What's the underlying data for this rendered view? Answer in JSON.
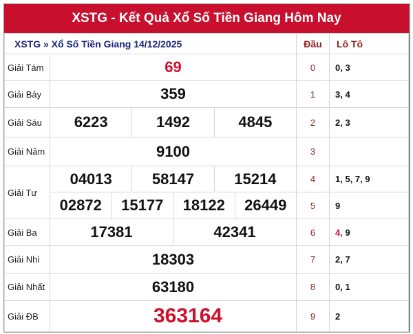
{
  "title": "XSTG - Kết Quả Xổ Số Tiền Giang Hôm Nay",
  "subheader": {
    "breadcrumb": "XSTG » Xổ Số Tiền Giang 14/12/2025",
    "dau_label": "Đầu",
    "loto_label": "Lô Tô"
  },
  "prizes": [
    {
      "label": "Giải Tám",
      "numbers": [
        "69"
      ]
    },
    {
      "label": "Giải Bảy",
      "numbers": [
        "359"
      ]
    },
    {
      "label": "Giải Sáu",
      "numbers": [
        "6223",
        "1492",
        "4845"
      ]
    },
    {
      "label": "Giải Năm",
      "numbers": [
        "9100"
      ]
    },
    {
      "label": "Giải Tư",
      "numbers": [
        "04013",
        "58147",
        "15214",
        "02872",
        "15177",
        "18122",
        "26449"
      ]
    },
    {
      "label": "Giải Ba",
      "numbers": [
        "17381",
        "42341"
      ]
    },
    {
      "label": "Giải Nhì",
      "numbers": [
        "18303"
      ]
    },
    {
      "label": "Giải Nhất",
      "numbers": [
        "63180"
      ]
    },
    {
      "label": "Giải ĐB",
      "numbers": [
        "363164"
      ]
    }
  ],
  "loto": [
    {
      "dau": "0",
      "tail": "0, 3"
    },
    {
      "dau": "1",
      "tail": "3, 4"
    },
    {
      "dau": "2",
      "tail": "2, 3"
    },
    {
      "dau": "3",
      "tail": ""
    },
    {
      "dau": "4",
      "tail": "1, 5, 7, 9"
    },
    {
      "dau": "5",
      "tail": "9"
    },
    {
      "dau": "6",
      "tail_highlight": "4,",
      "tail": " 9"
    },
    {
      "dau": "7",
      "tail": "2, 7"
    },
    {
      "dau": "8",
      "tail": "0, 1"
    },
    {
      "dau": "9",
      "tail": "2"
    }
  ],
  "colors": {
    "header": "#c8102e",
    "special": "#d0102b",
    "breadcrumb": "#1a237e",
    "dau": "#8b2a2a"
  }
}
